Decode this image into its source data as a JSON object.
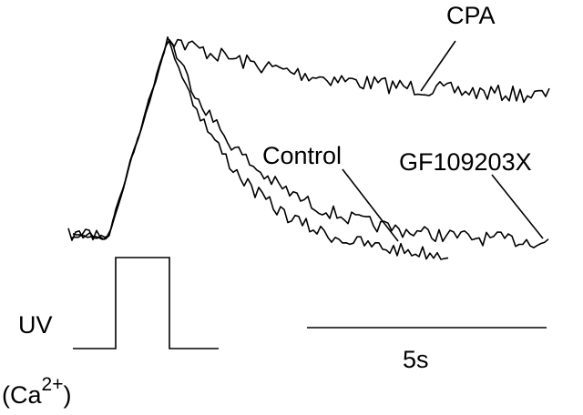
{
  "labels": {
    "cpa": "CPA",
    "control": "Control",
    "gf": "GF109203X",
    "uv": "UV",
    "scale": "5s",
    "ca_open": "(Ca",
    "ca_charge": "2+",
    "ca_close": ")"
  }
}
